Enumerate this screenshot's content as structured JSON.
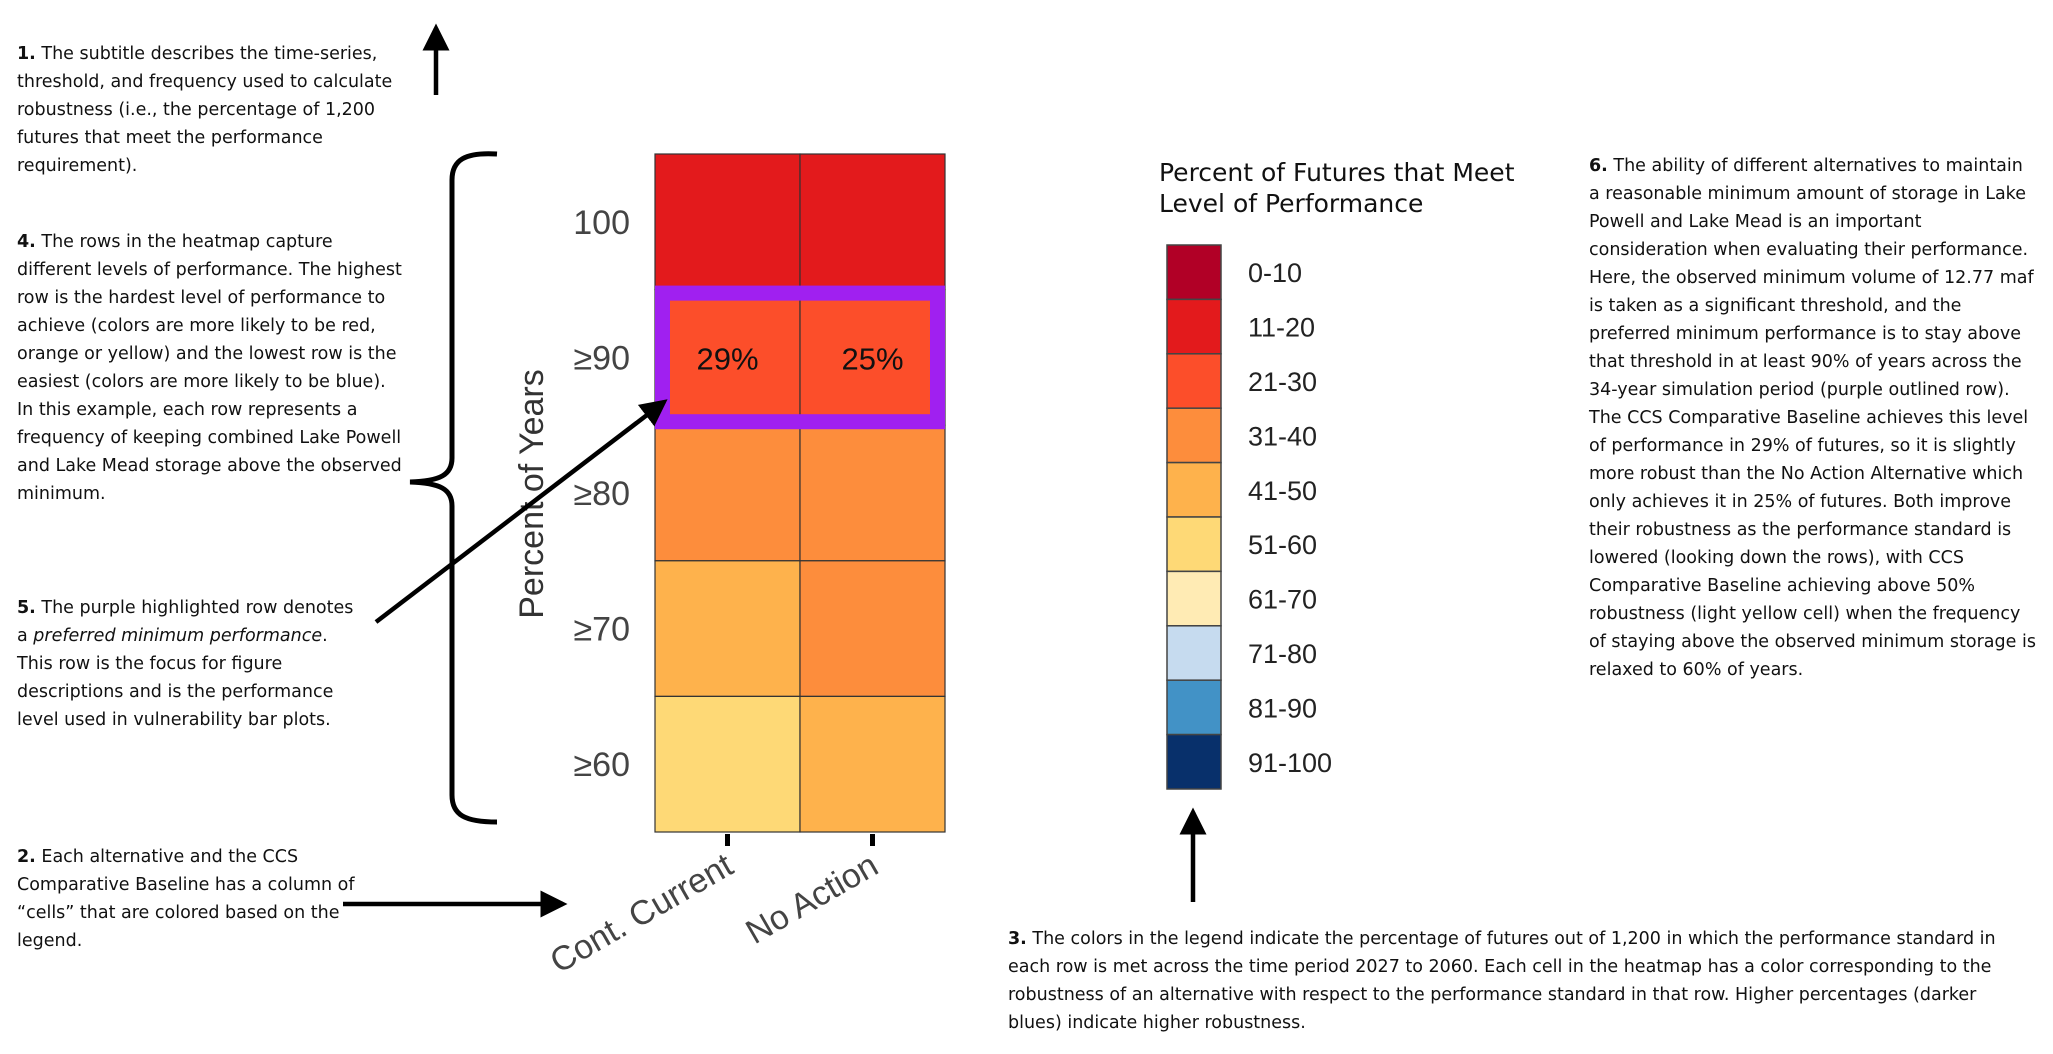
{
  "notes": {
    "n1": {
      "num": "1.",
      "text": " The subtitle describes the time-series, threshold, and frequency used to calculate robustness (i.e., the percentage of 1,200 futures that meet the performance requirement)."
    },
    "n4": {
      "num": "4.",
      "text": " The rows in the heatmap capture different levels of performance. The highest row is the hardest level of performance to achieve (colors are more likely to be red, orange or yellow) and the lowest row is the easiest (colors are more likely to be blue). In this example, each row represents a frequency of keeping combined Lake Powell and Lake Mead storage above the observed minimum."
    },
    "n5": {
      "num": "5.",
      "before": " The purple highlighted row denotes a ",
      "italic": "preferred minimum performance",
      "after": ". This row is the focus for figure descriptions and is the performance level used in vulnerability bar plots."
    },
    "n2": {
      "num": "2.",
      "text": " Each alternative and the CCS Comparative Baseline has a column of “cells” that are colored based on the legend."
    },
    "n3": {
      "num": "3.",
      "text": " The colors in the legend indicate the percentage of futures out of 1,200 in which the performance standard in each row is met across the time period 2027 to 2060. Each cell in the heatmap has a color corresponding to the robustness of an alternative with respect to the performance standard in that row. Higher percentages (darker blues) indicate higher robustness."
    },
    "n6": {
      "num": "6.",
      "text": " The ability of different alternatives to maintain a reasonable minimum amount of storage in Lake Powell and Lake Mead is an important consideration when evaluating their performance. Here, the observed minimum volume of 12.77 maf is taken as a significant threshold, and the preferred minimum performance is to stay above that threshold in at least 90% of years across the 34-year simulation period (purple outlined row). The CCS Comparative Baseline achieves this level of performance in 29% of futures, so it is slightly more robust than the No Action Alternative which only achieves it in 25% of futures. Both improve their robustness as the performance standard is lowered (looking down the rows), with CCS Comparative Baseline achieving above 50% robustness (light yellow cell) when the frequency of staying above the observed minimum storage is relaxed to 60% of years."
    }
  },
  "colors": {
    "highlight": "#a020f0",
    "arrow": "#000000"
  },
  "chart_data": {
    "type": "heatmap",
    "ylabel": "Percent of Years",
    "xlabel": "",
    "rows": [
      "100",
      "≥90",
      "≥80",
      "≥70",
      "≥60"
    ],
    "columns": [
      "Cont. Current",
      "No Action"
    ],
    "cells": [
      [
        "11-20",
        "11-20"
      ],
      [
        "21-30",
        "21-30"
      ],
      [
        "31-40",
        "31-40"
      ],
      [
        "41-50",
        "31-40"
      ],
      [
        "51-60",
        "41-50"
      ]
    ],
    "cell_labels": [
      [
        null,
        null
      ],
      [
        "29%",
        "25%"
      ],
      [
        null,
        null
      ],
      [
        null,
        null
      ],
      [
        null,
        null
      ]
    ],
    "highlighted_row": "≥90",
    "legend": {
      "title_line1": "Percent of Futures that Meet",
      "title_line2": "Level of Performance",
      "bins": [
        {
          "label": "0-10",
          "color": "#b10026"
        },
        {
          "label": "11-20",
          "color": "#e31a1c"
        },
        {
          "label": "21-30",
          "color": "#fc4e2a"
        },
        {
          "label": "31-40",
          "color": "#fd8d3c"
        },
        {
          "label": "41-50",
          "color": "#feb24c"
        },
        {
          "label": "51-60",
          "color": "#fed976"
        },
        {
          "label": "61-70",
          "color": "#ffebb4"
        },
        {
          "label": "71-80",
          "color": "#c6dbef"
        },
        {
          "label": "81-90",
          "color": "#4292c6"
        },
        {
          "label": "91-100",
          "color": "#08306b"
        }
      ]
    }
  }
}
